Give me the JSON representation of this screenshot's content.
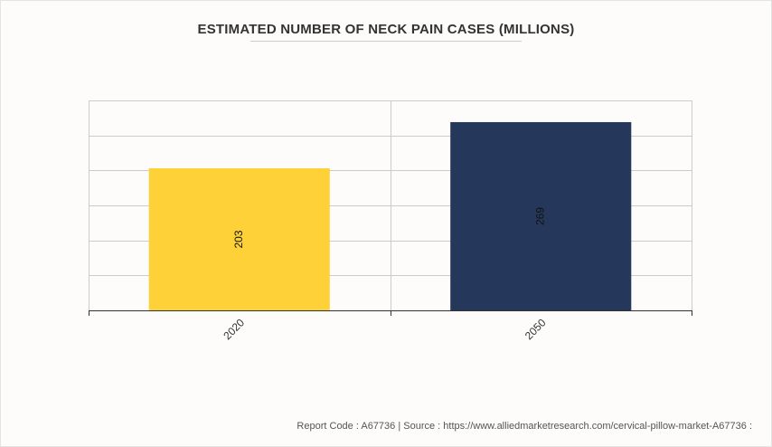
{
  "colors": {
    "bar_2020": "#fdd137",
    "bar_2050": "#25375a",
    "grid": "#cccccc",
    "axis": "#333333"
  },
  "chart_data": {
    "type": "bar",
    "title": "ESTIMATED NUMBER OF NECK PAIN CASES (MILLIONS)",
    "xlabel": "",
    "ylabel": "",
    "categories": [
      "2020",
      "2050"
    ],
    "values": [
      203,
      269
    ],
    "data_labels": [
      "203",
      "269"
    ],
    "ylim": [
      0,
      300
    ],
    "grid": true,
    "legend": "none"
  },
  "footer": {
    "text": "Report Code : A67736  |  Source : https://www.alliedmarketresearch.com/cervical-pillow-market-A67736 :"
  }
}
